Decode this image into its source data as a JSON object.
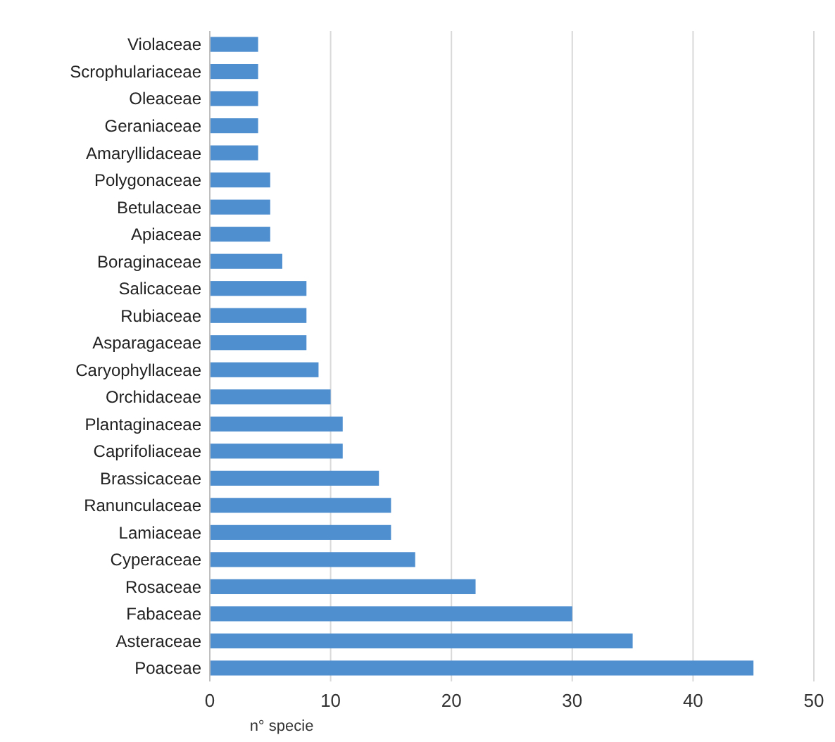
{
  "chart_data": {
    "type": "bar",
    "orientation": "horizontal",
    "xlabel": "n° specie",
    "categories": [
      "Violaceae",
      "Scrophulariaceae",
      "Oleaceae",
      "Geraniaceae",
      "Amaryllidaceae",
      "Polygonaceae",
      "Betulaceae",
      "Apiaceae",
      "Boraginaceae",
      "Salicaceae",
      "Rubiaceae",
      "Asparagaceae",
      "Caryophyllaceae",
      "Orchidaceae",
      "Plantaginaceae",
      "Caprifoliaceae",
      "Brassicaceae",
      "Ranunculaceae",
      "Lamiaceae",
      "Cyperaceae",
      "Rosaceae",
      "Fabaceae",
      "Asteraceae",
      "Poaceae"
    ],
    "values": [
      4,
      4,
      4,
      4,
      4,
      5,
      5,
      5,
      6,
      8,
      8,
      8,
      9,
      10,
      11,
      11,
      14,
      15,
      15,
      17,
      22,
      30,
      35,
      45
    ],
    "color": "#4f8fd0",
    "xlim": [
      0,
      50
    ],
    "xticks": [
      0,
      10,
      20,
      30,
      40,
      50
    ],
    "grid": "x"
  }
}
